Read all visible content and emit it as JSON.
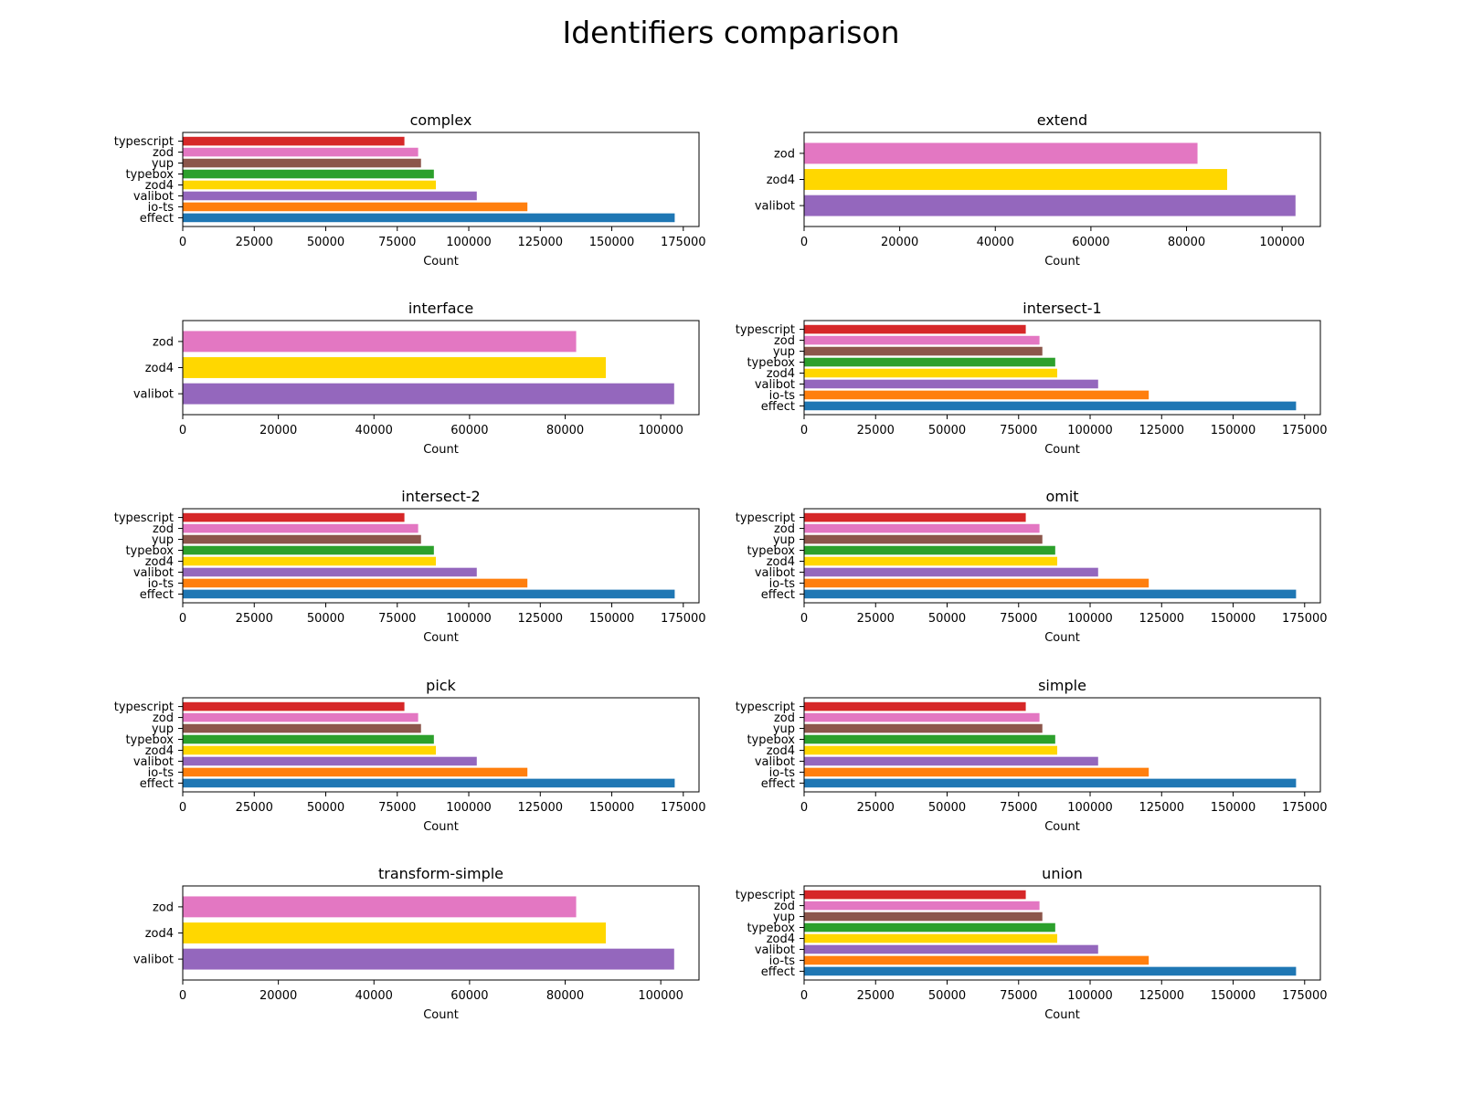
{
  "title": "Identifiers comparison",
  "colors": {
    "effect": "#1f77b4",
    "io-ts": "#ff7f0e",
    "valibot": "#9467bd",
    "zod4": "#ffd700",
    "typebox": "#2ca02c",
    "yup": "#8c564b",
    "zod": "#e377c2",
    "typescript": "#d62728"
  },
  "chart_data": [
    {
      "type": "bar",
      "orientation": "horizontal",
      "title": "complex",
      "xlabel": "Count",
      "ylabel": "",
      "categories": [
        "effect",
        "io-ts",
        "valibot",
        "zod4",
        "typebox",
        "yup",
        "zod",
        "typescript"
      ],
      "values": [
        172000,
        120500,
        102800,
        88500,
        87800,
        83300,
        82300,
        77500
      ],
      "xlim": [
        0,
        180500
      ],
      "xticks": [
        0,
        25000,
        50000,
        75000,
        100000,
        125000,
        150000,
        175000
      ]
    },
    {
      "type": "bar",
      "orientation": "horizontal",
      "title": "extend",
      "xlabel": "Count",
      "ylabel": "",
      "categories": [
        "valibot",
        "zod4",
        "zod"
      ],
      "values": [
        102800,
        88500,
        82300
      ],
      "xlim": [
        0,
        108000
      ],
      "xticks": [
        0,
        20000,
        40000,
        60000,
        80000,
        100000
      ]
    },
    {
      "type": "bar",
      "orientation": "horizontal",
      "title": "interface",
      "xlabel": "Count",
      "ylabel": "",
      "categories": [
        "valibot",
        "zod4",
        "zod"
      ],
      "values": [
        102800,
        88500,
        82300
      ],
      "xlim": [
        0,
        108000
      ],
      "xticks": [
        0,
        20000,
        40000,
        60000,
        80000,
        100000
      ]
    },
    {
      "type": "bar",
      "orientation": "horizontal",
      "title": "intersect-1",
      "xlabel": "Count",
      "ylabel": "",
      "categories": [
        "effect",
        "io-ts",
        "valibot",
        "zod4",
        "typebox",
        "yup",
        "zod",
        "typescript"
      ],
      "values": [
        172000,
        120500,
        102800,
        88500,
        87800,
        83300,
        82300,
        77500
      ],
      "xlim": [
        0,
        180500
      ],
      "xticks": [
        0,
        25000,
        50000,
        75000,
        100000,
        125000,
        150000,
        175000
      ]
    },
    {
      "type": "bar",
      "orientation": "horizontal",
      "title": "intersect-2",
      "xlabel": "Count",
      "ylabel": "",
      "categories": [
        "effect",
        "io-ts",
        "valibot",
        "zod4",
        "typebox",
        "yup",
        "zod",
        "typescript"
      ],
      "values": [
        172000,
        120500,
        102800,
        88500,
        87800,
        83300,
        82300,
        77500
      ],
      "xlim": [
        0,
        180500
      ],
      "xticks": [
        0,
        25000,
        50000,
        75000,
        100000,
        125000,
        150000,
        175000
      ]
    },
    {
      "type": "bar",
      "orientation": "horizontal",
      "title": "omit",
      "xlabel": "Count",
      "ylabel": "",
      "categories": [
        "effect",
        "io-ts",
        "valibot",
        "zod4",
        "typebox",
        "yup",
        "zod",
        "typescript"
      ],
      "values": [
        172000,
        120500,
        102800,
        88500,
        87800,
        83300,
        82300,
        77500
      ],
      "xlim": [
        0,
        180500
      ],
      "xticks": [
        0,
        25000,
        50000,
        75000,
        100000,
        125000,
        150000,
        175000
      ]
    },
    {
      "type": "bar",
      "orientation": "horizontal",
      "title": "pick",
      "xlabel": "Count",
      "ylabel": "",
      "categories": [
        "effect",
        "io-ts",
        "valibot",
        "zod4",
        "typebox",
        "yup",
        "zod",
        "typescript"
      ],
      "values": [
        172000,
        120500,
        102800,
        88500,
        87800,
        83300,
        82300,
        77500
      ],
      "xlim": [
        0,
        180500
      ],
      "xticks": [
        0,
        25000,
        50000,
        75000,
        100000,
        125000,
        150000,
        175000
      ]
    },
    {
      "type": "bar",
      "orientation": "horizontal",
      "title": "simple",
      "xlabel": "Count",
      "ylabel": "",
      "categories": [
        "effect",
        "io-ts",
        "valibot",
        "zod4",
        "typebox",
        "yup",
        "zod",
        "typescript"
      ],
      "values": [
        172000,
        120500,
        102800,
        88500,
        87800,
        83300,
        82300,
        77500
      ],
      "xlim": [
        0,
        180500
      ],
      "xticks": [
        0,
        25000,
        50000,
        75000,
        100000,
        125000,
        150000,
        175000
      ]
    },
    {
      "type": "bar",
      "orientation": "horizontal",
      "title": "transform-simple",
      "xlabel": "Count",
      "ylabel": "",
      "categories": [
        "valibot",
        "zod4",
        "zod"
      ],
      "values": [
        102800,
        88500,
        82300
      ],
      "xlim": [
        0,
        108000
      ],
      "xticks": [
        0,
        20000,
        40000,
        60000,
        80000,
        100000
      ]
    },
    {
      "type": "bar",
      "orientation": "horizontal",
      "title": "union",
      "xlabel": "Count",
      "ylabel": "",
      "categories": [
        "effect",
        "io-ts",
        "valibot",
        "zod4",
        "typebox",
        "yup",
        "zod",
        "typescript"
      ],
      "values": [
        172000,
        120500,
        102800,
        88500,
        87800,
        83300,
        82300,
        77500
      ],
      "xlim": [
        0,
        180500
      ],
      "xticks": [
        0,
        25000,
        50000,
        75000,
        100000,
        125000,
        150000,
        175000
      ]
    }
  ]
}
